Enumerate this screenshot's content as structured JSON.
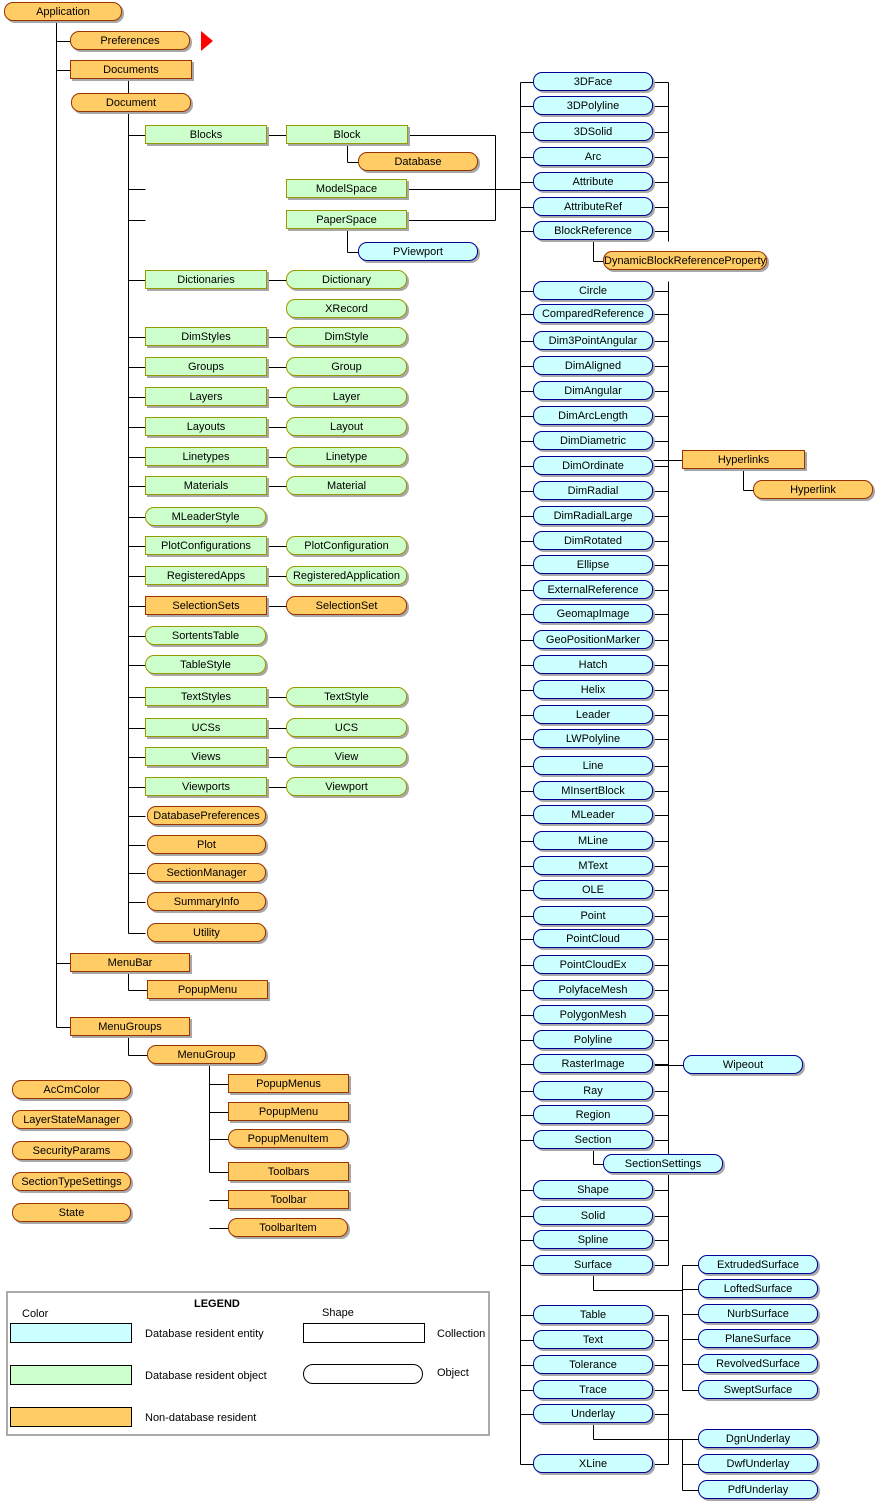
{
  "colors": {
    "non_database": "#FFCC66",
    "object": "#CCFFCC",
    "entity": "#CCFFFF"
  },
  "nodes": [
    {
      "label": "Application",
      "kind": "nd",
      "shape": "object"
    },
    {
      "label": "Preferences",
      "kind": "nd",
      "shape": "object"
    },
    {
      "label": "Documents",
      "kind": "nd",
      "shape": "collection"
    },
    {
      "label": "Document",
      "kind": "nd",
      "shape": "object"
    },
    {
      "label": "Blocks",
      "kind": "obj",
      "shape": "collection"
    },
    {
      "label": "Block",
      "kind": "obj",
      "shape": "collection"
    },
    {
      "label": "Database",
      "kind": "nd",
      "shape": "object"
    },
    {
      "label": "ModelSpace",
      "kind": "obj",
      "shape": "collection"
    },
    {
      "label": "PaperSpace",
      "kind": "obj",
      "shape": "collection"
    },
    {
      "label": "PViewport",
      "kind": "ent",
      "shape": "object"
    },
    {
      "label": "Dictionaries",
      "kind": "obj",
      "shape": "collection"
    },
    {
      "label": "Dictionary",
      "kind": "obj",
      "shape": "object"
    },
    {
      "label": "XRecord",
      "kind": "obj",
      "shape": "object"
    },
    {
      "label": "DimStyles",
      "kind": "obj",
      "shape": "collection"
    },
    {
      "label": "DimStyle",
      "kind": "obj",
      "shape": "object"
    },
    {
      "label": "Groups",
      "kind": "obj",
      "shape": "collection"
    },
    {
      "label": "Group",
      "kind": "obj",
      "shape": "object"
    },
    {
      "label": "Layers",
      "kind": "obj",
      "shape": "collection"
    },
    {
      "label": "Layer",
      "kind": "obj",
      "shape": "object"
    },
    {
      "label": "Layouts",
      "kind": "obj",
      "shape": "collection"
    },
    {
      "label": "Layout",
      "kind": "obj",
      "shape": "object"
    },
    {
      "label": "Linetypes",
      "kind": "obj",
      "shape": "collection"
    },
    {
      "label": "Linetype",
      "kind": "obj",
      "shape": "object"
    },
    {
      "label": "Materials",
      "kind": "obj",
      "shape": "collection"
    },
    {
      "label": "Material",
      "kind": "obj",
      "shape": "object"
    },
    {
      "label": "MLeaderStyle",
      "kind": "obj",
      "shape": "object"
    },
    {
      "label": "PlotConfigurations",
      "kind": "obj",
      "shape": "collection"
    },
    {
      "label": "PlotConfiguration",
      "kind": "obj",
      "shape": "object"
    },
    {
      "label": "RegisteredApps",
      "kind": "obj",
      "shape": "collection"
    },
    {
      "label": "RegisteredApplication",
      "kind": "obj",
      "shape": "object"
    },
    {
      "label": "SelectionSets",
      "kind": "nd",
      "shape": "collection"
    },
    {
      "label": "SelectionSet",
      "kind": "nd",
      "shape": "object"
    },
    {
      "label": "SortentsTable",
      "kind": "obj",
      "shape": "object"
    },
    {
      "label": "TableStyle",
      "kind": "obj",
      "shape": "object"
    },
    {
      "label": "TextStyles",
      "kind": "obj",
      "shape": "collection"
    },
    {
      "label": "TextStyle",
      "kind": "obj",
      "shape": "object"
    },
    {
      "label": "UCSs",
      "kind": "obj",
      "shape": "collection"
    },
    {
      "label": "UCS",
      "kind": "obj",
      "shape": "object"
    },
    {
      "label": "Views",
      "kind": "obj",
      "shape": "collection"
    },
    {
      "label": "View",
      "kind": "obj",
      "shape": "object"
    },
    {
      "label": "Viewports",
      "kind": "obj",
      "shape": "collection"
    },
    {
      "label": "Viewport",
      "kind": "obj",
      "shape": "object"
    },
    {
      "label": "DatabasePreferences",
      "kind": "nd",
      "shape": "object"
    },
    {
      "label": "Plot",
      "kind": "nd",
      "shape": "object"
    },
    {
      "label": "SectionManager",
      "kind": "nd",
      "shape": "object"
    },
    {
      "label": "SummaryInfo",
      "kind": "nd",
      "shape": "object"
    },
    {
      "label": "Utility",
      "kind": "nd",
      "shape": "object"
    },
    {
      "label": "MenuBar",
      "kind": "nd",
      "shape": "collection"
    },
    {
      "label": "PopupMenu",
      "kind": "nd",
      "shape": "collection"
    },
    {
      "label": "MenuGroups",
      "kind": "nd",
      "shape": "collection"
    },
    {
      "label": "MenuGroup",
      "kind": "nd",
      "shape": "object"
    },
    {
      "label": "PopupMenus",
      "kind": "nd",
      "shape": "collection"
    },
    {
      "label": "PopupMenu",
      "kind": "nd",
      "shape": "collection"
    },
    {
      "label": "PopupMenuItem",
      "kind": "nd",
      "shape": "object"
    },
    {
      "label": "Toolbars",
      "kind": "nd",
      "shape": "collection"
    },
    {
      "label": "Toolbar",
      "kind": "nd",
      "shape": "collection"
    },
    {
      "label": "ToolbarItem",
      "kind": "nd",
      "shape": "object"
    },
    {
      "label": "AcCmColor",
      "kind": "nd",
      "shape": "object"
    },
    {
      "label": "LayerStateManager",
      "kind": "nd",
      "shape": "object"
    },
    {
      "label": "SecurityParams",
      "kind": "nd",
      "shape": "object"
    },
    {
      "label": "SectionTypeSettings",
      "kind": "nd",
      "shape": "object"
    },
    {
      "label": "State",
      "kind": "nd",
      "shape": "object"
    },
    {
      "label": "3DFace",
      "kind": "ent",
      "shape": "object"
    },
    {
      "label": "3DPolyline",
      "kind": "ent",
      "shape": "object"
    },
    {
      "label": "3DSolid",
      "kind": "ent",
      "shape": "object"
    },
    {
      "label": "Arc",
      "kind": "ent",
      "shape": "object"
    },
    {
      "label": "Attribute",
      "kind": "ent",
      "shape": "object"
    },
    {
      "label": "AttributeRef",
      "kind": "ent",
      "shape": "object"
    },
    {
      "label": "BlockReference",
      "kind": "ent",
      "shape": "object"
    },
    {
      "label": "DynamicBlockReferenceProperty",
      "kind": "nd",
      "shape": "object"
    },
    {
      "label": "Circle",
      "kind": "ent",
      "shape": "object"
    },
    {
      "label": "ComparedReference",
      "kind": "ent",
      "shape": "object"
    },
    {
      "label": "Dim3PointAngular",
      "kind": "ent",
      "shape": "object"
    },
    {
      "label": "DimAligned",
      "kind": "ent",
      "shape": "object"
    },
    {
      "label": "DimAngular",
      "kind": "ent",
      "shape": "object"
    },
    {
      "label": "DimArcLength",
      "kind": "ent",
      "shape": "object"
    },
    {
      "label": "DimDiametric",
      "kind": "ent",
      "shape": "object"
    },
    {
      "label": "DimOrdinate",
      "kind": "ent",
      "shape": "object"
    },
    {
      "label": "Hyperlinks",
      "kind": "nd",
      "shape": "collection"
    },
    {
      "label": "Hyperlink",
      "kind": "nd",
      "shape": "object"
    },
    {
      "label": "DimRadial",
      "kind": "ent",
      "shape": "object"
    },
    {
      "label": "DimRadialLarge",
      "kind": "ent",
      "shape": "object"
    },
    {
      "label": "DimRotated",
      "kind": "ent",
      "shape": "object"
    },
    {
      "label": "Ellipse",
      "kind": "ent",
      "shape": "object"
    },
    {
      "label": "ExternalReference",
      "kind": "ent",
      "shape": "object"
    },
    {
      "label": "GeomapImage",
      "kind": "ent",
      "shape": "object"
    },
    {
      "label": "GeoPositionMarker",
      "kind": "ent",
      "shape": "object"
    },
    {
      "label": "Hatch",
      "kind": "ent",
      "shape": "object"
    },
    {
      "label": "Helix",
      "kind": "ent",
      "shape": "object"
    },
    {
      "label": "Leader",
      "kind": "ent",
      "shape": "object"
    },
    {
      "label": "LWPolyline",
      "kind": "ent",
      "shape": "object"
    },
    {
      "label": "Line",
      "kind": "ent",
      "shape": "object"
    },
    {
      "label": "MInsertBlock",
      "kind": "ent",
      "shape": "object"
    },
    {
      "label": "MLeader",
      "kind": "ent",
      "shape": "object"
    },
    {
      "label": "MLine",
      "kind": "ent",
      "shape": "object"
    },
    {
      "label": "MText",
      "kind": "ent",
      "shape": "object"
    },
    {
      "label": "OLE",
      "kind": "ent",
      "shape": "object"
    },
    {
      "label": "Point",
      "kind": "ent",
      "shape": "object"
    },
    {
      "label": "PointCloud",
      "kind": "ent",
      "shape": "object"
    },
    {
      "label": "PointCloudEx",
      "kind": "ent",
      "shape": "object"
    },
    {
      "label": "PolyfaceMesh",
      "kind": "ent",
      "shape": "object"
    },
    {
      "label": "PolygonMesh",
      "kind": "ent",
      "shape": "object"
    },
    {
      "label": "Polyline",
      "kind": "ent",
      "shape": "object"
    },
    {
      "label": "RasterImage",
      "kind": "ent",
      "shape": "object"
    },
    {
      "label": "Wipeout",
      "kind": "ent",
      "shape": "object"
    },
    {
      "label": "Ray",
      "kind": "ent",
      "shape": "object"
    },
    {
      "label": "Region",
      "kind": "ent",
      "shape": "object"
    },
    {
      "label": "Section",
      "kind": "ent",
      "shape": "object"
    },
    {
      "label": "SectionSettings",
      "kind": "ent",
      "shape": "object"
    },
    {
      "label": "Shape",
      "kind": "ent",
      "shape": "object"
    },
    {
      "label": "Solid",
      "kind": "ent",
      "shape": "object"
    },
    {
      "label": "Spline",
      "kind": "ent",
      "shape": "object"
    },
    {
      "label": "Surface",
      "kind": "ent",
      "shape": "object"
    },
    {
      "label": "ExtrudedSurface",
      "kind": "ent",
      "shape": "object"
    },
    {
      "label": "LoftedSurface",
      "kind": "ent",
      "shape": "object"
    },
    {
      "label": "NurbSurface",
      "kind": "ent",
      "shape": "object"
    },
    {
      "label": "PlaneSurface",
      "kind": "ent",
      "shape": "object"
    },
    {
      "label": "RevolvedSurface",
      "kind": "ent",
      "shape": "object"
    },
    {
      "label": "SweptSurface",
      "kind": "ent",
      "shape": "object"
    },
    {
      "label": "Table",
      "kind": "ent",
      "shape": "object"
    },
    {
      "label": "Text",
      "kind": "ent",
      "shape": "object"
    },
    {
      "label": "Tolerance",
      "kind": "ent",
      "shape": "object"
    },
    {
      "label": "Trace",
      "kind": "ent",
      "shape": "object"
    },
    {
      "label": "Underlay",
      "kind": "ent",
      "shape": "object"
    },
    {
      "label": "DgnUnderlay",
      "kind": "ent",
      "shape": "object"
    },
    {
      "label": "DwfUnderlay",
      "kind": "ent",
      "shape": "object"
    },
    {
      "label": "PdfUnderlay",
      "kind": "ent",
      "shape": "object"
    },
    {
      "label": "XLine",
      "kind": "ent",
      "shape": "object"
    }
  ],
  "legend": {
    "title": "LEGEND",
    "color_header": "Color",
    "shape_header": "Shape",
    "entity": "Database resident entity",
    "object": "Database resident object",
    "non_database": "Non-database  resident",
    "collection": "Collection",
    "object_shape": "Object"
  }
}
